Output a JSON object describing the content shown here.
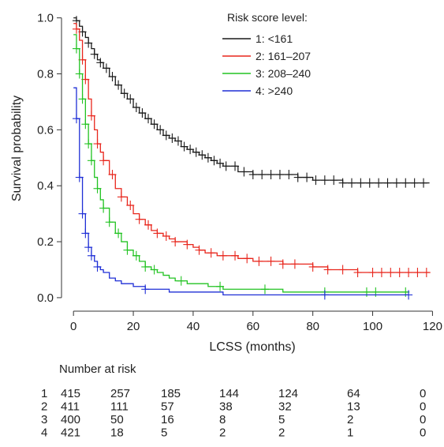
{
  "chart_data": {
    "type": "line",
    "title": "",
    "xlabel": "LCSS (months)",
    "ylabel": "Survival probability",
    "xlim": [
      -4,
      122
    ],
    "ylim": [
      -0.02,
      1.03
    ],
    "xticks": [
      0,
      20,
      40,
      60,
      80,
      100,
      120
    ],
    "yticks": [
      0.0,
      0.2,
      0.4,
      0.6,
      0.8,
      1.0
    ],
    "xtick_labels": [
      "0",
      "20",
      "40",
      "60",
      "80",
      "100",
      "120"
    ],
    "ytick_labels": [
      "0.0",
      "0.2",
      "0.4",
      "0.6",
      "0.8",
      "1.0"
    ],
    "legend": {
      "title": "Risk score level:",
      "placement": "top-right",
      "entries": [
        "1: <161",
        "2: 161–207",
        "3: 208–240",
        "4: >240"
      ]
    },
    "series": [
      {
        "name": "1: <161",
        "color": "#1a1a1a",
        "x": [
          0,
          1,
          2,
          3,
          4,
          5,
          6,
          7,
          8,
          9,
          10,
          12,
          14,
          16,
          18,
          20,
          22,
          24,
          26,
          28,
          30,
          32,
          34,
          36,
          38,
          40,
          42,
          44,
          46,
          48,
          50,
          55,
          60,
          65,
          70,
          75,
          80,
          85,
          90,
          95,
          100,
          105,
          110,
          115,
          119
        ],
        "y": [
          1.0,
          0.99,
          0.97,
          0.95,
          0.93,
          0.91,
          0.89,
          0.87,
          0.85,
          0.84,
          0.82,
          0.79,
          0.76,
          0.73,
          0.71,
          0.68,
          0.66,
          0.64,
          0.62,
          0.6,
          0.58,
          0.57,
          0.56,
          0.54,
          0.53,
          0.52,
          0.51,
          0.5,
          0.49,
          0.48,
          0.47,
          0.45,
          0.44,
          0.44,
          0.44,
          0.43,
          0.42,
          0.42,
          0.41,
          0.41,
          0.41,
          0.41,
          0.41,
          0.41,
          0.41
        ],
        "censor_x": [
          1,
          3,
          5,
          7,
          9,
          11,
          13,
          15,
          17,
          19,
          21,
          23,
          25,
          27,
          29,
          31,
          33,
          35,
          37,
          39,
          41,
          43,
          45,
          47,
          49,
          51,
          54,
          57,
          60,
          63,
          66,
          69,
          72,
          75,
          78,
          81,
          84,
          87,
          90,
          93,
          96,
          99,
          102,
          105,
          108,
          111,
          114,
          117
        ]
      },
      {
        "name": "2: 161–207",
        "color": "#e8261c",
        "x": [
          0,
          1,
          2,
          3,
          4,
          5,
          6,
          7,
          8,
          9,
          10,
          12,
          14,
          16,
          18,
          20,
          22,
          24,
          26,
          28,
          30,
          32,
          34,
          36,
          38,
          40,
          42,
          44,
          46,
          48,
          50,
          55,
          60,
          65,
          70,
          75,
          80,
          85,
          90,
          95,
          100,
          105,
          110,
          115,
          119
        ],
        "y": [
          0.98,
          0.96,
          0.92,
          0.85,
          0.78,
          0.71,
          0.65,
          0.6,
          0.55,
          0.52,
          0.49,
          0.44,
          0.39,
          0.36,
          0.33,
          0.3,
          0.28,
          0.26,
          0.24,
          0.23,
          0.22,
          0.21,
          0.2,
          0.2,
          0.19,
          0.18,
          0.17,
          0.16,
          0.16,
          0.15,
          0.15,
          0.14,
          0.13,
          0.13,
          0.12,
          0.12,
          0.11,
          0.1,
          0.1,
          0.09,
          0.09,
          0.09,
          0.09,
          0.09,
          0.09
        ],
        "censor_x": [
          1,
          3,
          4,
          6,
          8,
          10,
          13,
          16,
          19,
          22,
          25,
          28,
          31,
          34,
          38,
          42,
          46,
          50,
          54,
          58,
          62,
          66,
          70,
          74,
          80,
          85,
          90,
          95,
          100,
          103,
          106,
          109,
          112,
          115,
          118
        ]
      },
      {
        "name": "3: 208–240",
        "color": "#22c322",
        "x": [
          0,
          1,
          2,
          3,
          4,
          5,
          6,
          7,
          8,
          9,
          10,
          12,
          14,
          16,
          18,
          20,
          22,
          24,
          26,
          28,
          30,
          32,
          34,
          36,
          38,
          40,
          45,
          50,
          55,
          60,
          70,
          80,
          90,
          100,
          112
        ],
        "y": [
          0.94,
          0.89,
          0.8,
          0.71,
          0.62,
          0.55,
          0.49,
          0.43,
          0.39,
          0.35,
          0.32,
          0.27,
          0.23,
          0.2,
          0.17,
          0.15,
          0.13,
          0.11,
          0.1,
          0.09,
          0.08,
          0.07,
          0.06,
          0.06,
          0.05,
          0.05,
          0.04,
          0.03,
          0.03,
          0.03,
          0.02,
          0.02,
          0.02,
          0.02,
          0.02
        ],
        "censor_x": [
          1,
          2,
          3,
          4,
          5,
          6,
          8,
          10,
          12,
          15,
          18,
          21,
          24,
          27,
          36,
          49,
          64,
          84,
          98,
          101,
          111
        ]
      },
      {
        "name": "4: >240",
        "color": "#1f2fd6",
        "x": [
          0,
          1,
          2,
          3,
          4,
          5,
          6,
          7,
          8,
          9,
          10,
          12,
          14,
          16,
          18,
          20,
          22,
          24,
          28,
          32,
          36,
          40,
          50,
          60,
          70,
          84,
          100,
          112
        ],
        "y": [
          0.75,
          0.64,
          0.43,
          0.3,
          0.23,
          0.18,
          0.15,
          0.13,
          0.11,
          0.1,
          0.09,
          0.07,
          0.06,
          0.05,
          0.05,
          0.04,
          0.04,
          0.03,
          0.03,
          0.02,
          0.02,
          0.02,
          0.01,
          0.01,
          0.01,
          0.01,
          0.01,
          0.01
        ],
        "censor_x": [
          1,
          2,
          3,
          4,
          5,
          6,
          8,
          24,
          84,
          112
        ]
      }
    ]
  },
  "risk_table": {
    "title": "Number at risk",
    "times": [
      0,
      20,
      40,
      60,
      80,
      100,
      120
    ],
    "rows": [
      {
        "label": "1",
        "values": [
          "415",
          "257",
          "185",
          "144",
          "124",
          "64",
          "0"
        ]
      },
      {
        "label": "2",
        "values": [
          "411",
          "111",
          "57",
          "38",
          "32",
          "13",
          "0"
        ]
      },
      {
        "label": "3",
        "values": [
          "400",
          "50",
          "16",
          "8",
          "5",
          "2",
          "0"
        ]
      },
      {
        "label": "4",
        "values": [
          "421",
          "18",
          "5",
          "2",
          "2",
          "1",
          "0"
        ]
      }
    ]
  }
}
